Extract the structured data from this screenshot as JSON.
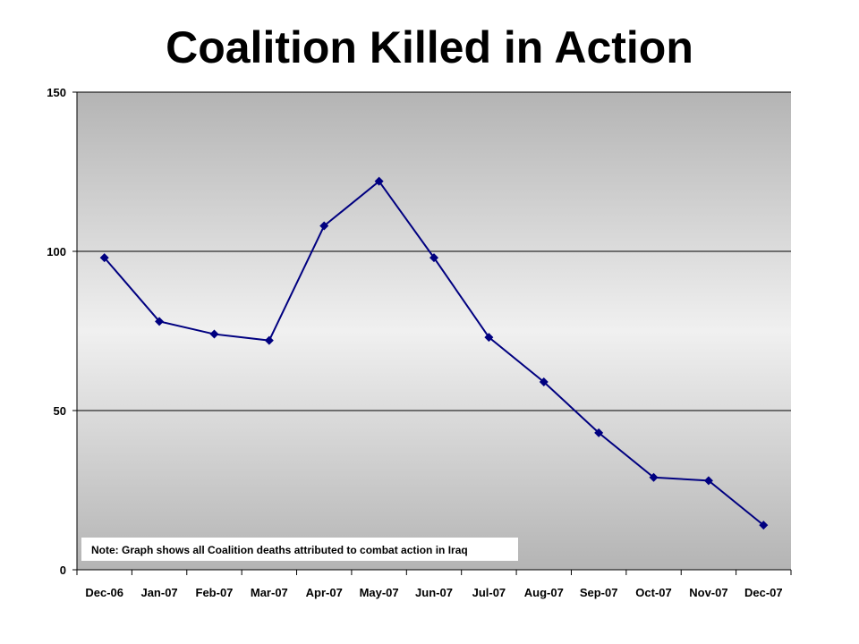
{
  "chart_data": {
    "type": "line",
    "title": "Coalition Killed in Action",
    "xlabel": "",
    "ylabel": "",
    "categories": [
      "Dec-06",
      "Jan-07",
      "Feb-07",
      "Mar-07",
      "Apr-07",
      "May-07",
      "Jun-07",
      "Jul-07",
      "Aug-07",
      "Sep-07",
      "Oct-07",
      "Nov-07",
      "Dec-07"
    ],
    "series": [
      {
        "values": [
          98,
          78,
          74,
          72,
          108,
          122,
          98,
          73,
          59,
          43,
          29,
          28,
          14
        ]
      }
    ],
    "ylim": [
      0,
      150
    ],
    "yticks": [
      0,
      50,
      100,
      150
    ],
    "grid": true,
    "note": "Note: Graph shows all Coalition deaths attributed to combat action in Iraq",
    "colors": {
      "line": "#000080",
      "marker": "#000080",
      "plot_bg_top": "#b4b4b4",
      "plot_bg_mid": "#f0f0f0",
      "plot_bg_bottom": "#b4b4b4",
      "gridline": "#000000"
    }
  }
}
